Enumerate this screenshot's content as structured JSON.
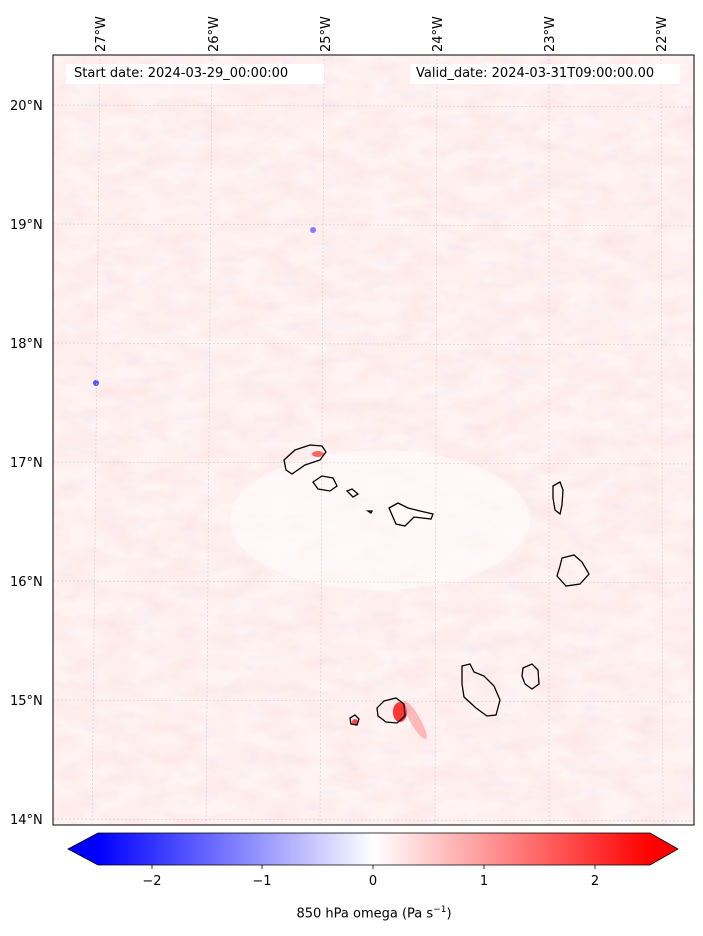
{
  "map": {
    "start_label": "Start date: 2024-03-29_00:00:00",
    "valid_label": "Valid_date: 2024-03-31T09:00:00.00",
    "longitude_labels": [
      "27°W",
      "26°W",
      "25°W",
      "24°W",
      "23°W",
      "22°W"
    ],
    "latitude_labels": [
      "20°N",
      "19°N",
      "18°N",
      "17°N",
      "16°N",
      "15°N",
      "14°N"
    ],
    "gridlines": true,
    "coastline_color": "#000000",
    "field": "850 hPa omega",
    "colormap": "bwr"
  },
  "colorbar": {
    "label": "850 hPa omega (Pa s",
    "label_unit_exponent": "−1",
    "label_close": ")",
    "tick_labels": [
      "−2",
      "−1",
      "0",
      "1",
      "2"
    ],
    "min_color": "#0000ff",
    "mid_color": "#ffffff",
    "max_color": "#ff0000",
    "extend": "both"
  }
}
